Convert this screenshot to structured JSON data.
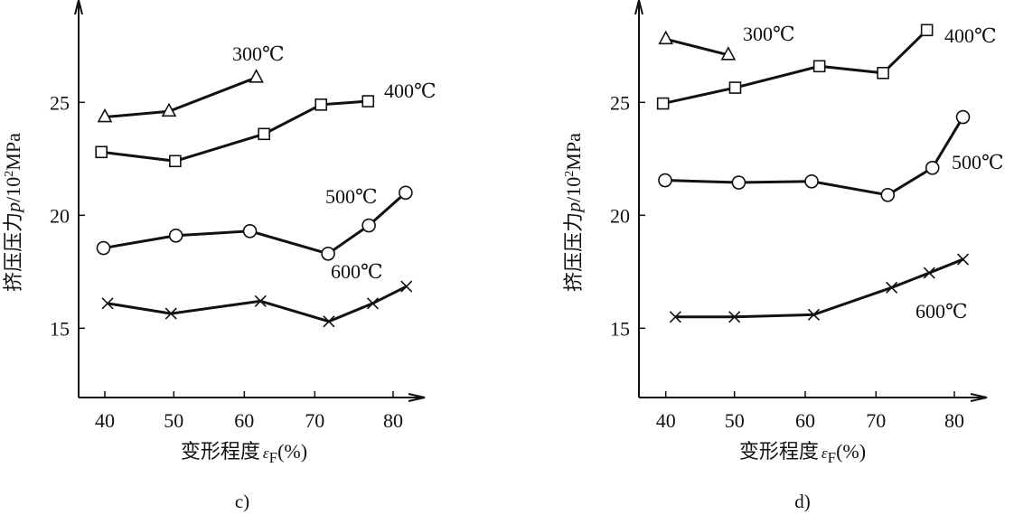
{
  "chart_data": [
    {
      "type": "line",
      "panel_label": "c)",
      "xlabel": {
        "main": "变形程度",
        "symbol": "ε",
        "sub": "F",
        "unit": "(%)"
      },
      "ylabel": {
        "main": "挤压压力",
        "symbol": "p",
        "unit_pre": "/10",
        "sup": "2",
        "unit_post": "MPa"
      },
      "xticks": [
        "40",
        "50",
        "60",
        "70",
        "80"
      ],
      "yticks": [
        "15",
        "20",
        "25"
      ],
      "xlim": [
        37,
        84
      ],
      "ylim": [
        11.9,
        29.5
      ],
      "grid": false,
      "series": [
        {
          "name": "300℃",
          "marker": "triangle",
          "x": [
            40,
            49.3,
            61.7
          ],
          "y": [
            24.35,
            24.6,
            26.1
          ]
        },
        {
          "name": "400℃",
          "marker": "square",
          "x": [
            39.5,
            50.2,
            62.8,
            70.8,
            76.8
          ],
          "y": [
            22.8,
            22.4,
            23.6,
            24.9,
            25.05
          ]
        },
        {
          "name": "500℃",
          "marker": "circle",
          "x": [
            39.8,
            50.3,
            60.8,
            71.7,
            76.9,
            81.6
          ],
          "y": [
            18.55,
            19.1,
            19.3,
            18.3,
            19.55,
            21.0
          ]
        },
        {
          "name": "600℃",
          "marker": "cross",
          "x": [
            40.4,
            49.6,
            62.3,
            71.8,
            77.4,
            81.7
          ],
          "y": [
            16.1,
            15.65,
            16.2,
            15.3,
            16.1,
            16.85
          ]
        }
      ]
    },
    {
      "type": "line",
      "panel_label": "d)",
      "xlabel": {
        "main": "变形程度",
        "symbol": "ε",
        "sub": "F",
        "unit": "(%)"
      },
      "ylabel": {
        "main": "挤压压力",
        "symbol": "p",
        "unit_pre": "/10",
        "sup": "2",
        "unit_post": "MPa"
      },
      "xticks": [
        "40",
        "50",
        "60",
        "70",
        "80"
      ],
      "yticks": [
        "15",
        "20",
        "25"
      ],
      "xlim": [
        37,
        84
      ],
      "ylim": [
        11.9,
        29.5
      ],
      "grid": false,
      "series": [
        {
          "name": "300℃",
          "marker": "triangle",
          "x": [
            40,
            49.1
          ],
          "y": [
            27.8,
            27.1
          ]
        },
        {
          "name": "400℃",
          "marker": "square",
          "x": [
            39.6,
            50.1,
            62.0,
            70.9,
            76.5
          ],
          "y": [
            24.95,
            25.65,
            26.6,
            26.3,
            28.2
          ]
        },
        {
          "name": "500℃",
          "marker": "circle",
          "x": [
            39.9,
            50.6,
            60.9,
            71.5,
            77.2,
            81.1
          ],
          "y": [
            21.55,
            21.45,
            21.5,
            20.9,
            22.1,
            24.35
          ]
        },
        {
          "name": "600℃",
          "marker": "cross",
          "x": [
            41.4,
            50.0,
            61.2,
            72.0,
            76.8,
            81.1
          ],
          "y": [
            15.5,
            15.5,
            15.6,
            16.8,
            17.45,
            18.05
          ]
        }
      ]
    }
  ]
}
